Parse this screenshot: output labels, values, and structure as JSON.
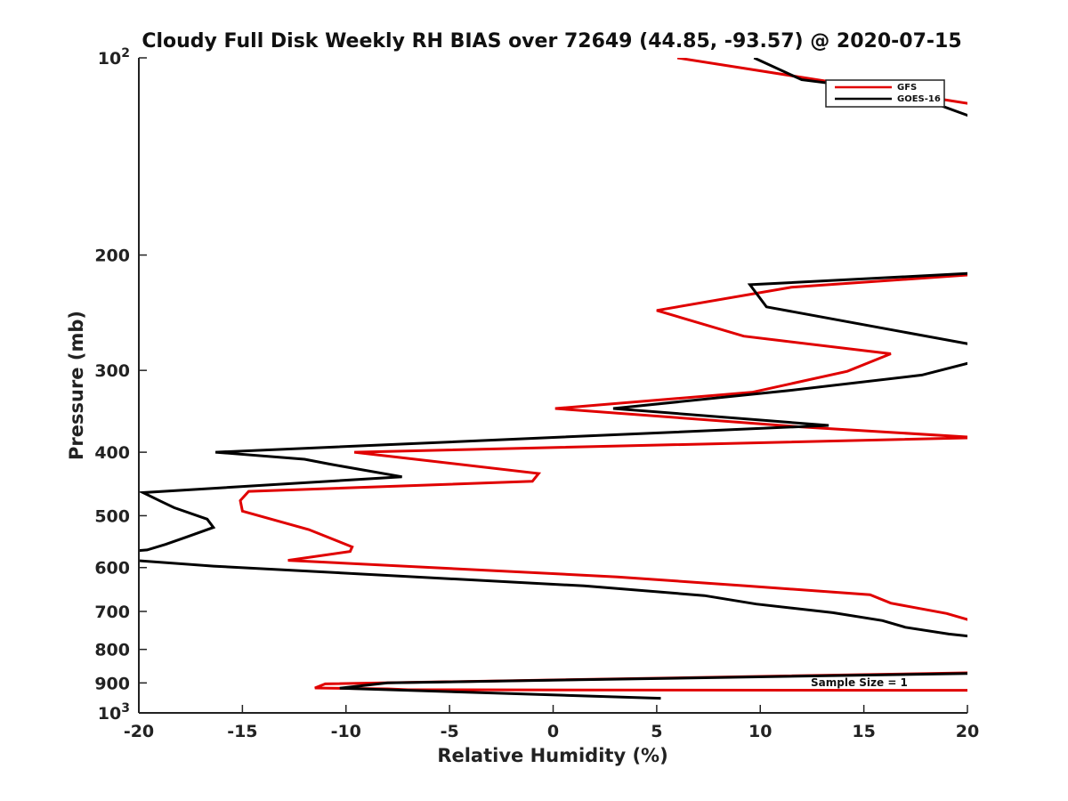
{
  "chart_data": {
    "type": "line",
    "title": "Cloudy Full Disk Weekly RH BIAS over 72649 (44.85, -93.57) @ 2020-07-15",
    "xlabel": "Relative Humidity (%)",
    "ylabel": "Pressure (mb)",
    "xlim": [
      -20,
      20
    ],
    "ylim": [
      100,
      1000
    ],
    "y_scale": "log",
    "y_reversed": true,
    "x_ticks": [
      "-20",
      "-15",
      "-10",
      "-5",
      "0",
      "5",
      "10",
      "15",
      "20"
    ],
    "y_ticks": [
      {
        "value": 100,
        "base": "10",
        "exp": "2"
      },
      {
        "value": 200,
        "label": "200"
      },
      {
        "value": 300,
        "label": "300"
      },
      {
        "value": 400,
        "label": "400"
      },
      {
        "value": 500,
        "label": "500"
      },
      {
        "value": 600,
        "label": "600"
      },
      {
        "value": 700,
        "label": "700"
      },
      {
        "value": 800,
        "label": "800"
      },
      {
        "value": 900,
        "label": "900"
      },
      {
        "value": 1000,
        "base": "10",
        "exp": "3"
      }
    ],
    "legend_position": "top-right",
    "annotation": "Sample Size = 1",
    "series": [
      {
        "name": "GFS",
        "color": "#e00000",
        "points": [
          [
            6.0,
            100
          ],
          [
            20.5,
            118
          ],
          [
            20.5,
            214
          ],
          [
            11.5,
            224
          ],
          [
            5.0,
            243
          ],
          [
            9.2,
            266
          ],
          [
            16.3,
            283
          ],
          [
            14.2,
            301
          ],
          [
            9.6,
            324
          ],
          [
            0.1,
            343
          ],
          [
            12.0,
            366
          ],
          [
            20.5,
            380
          ],
          [
            -9.6,
            400
          ],
          [
            -0.7,
            431
          ],
          [
            -1.0,
            443
          ],
          [
            -14.7,
            459
          ],
          [
            -15.1,
            474
          ],
          [
            -15.0,
            492
          ],
          [
            -11.8,
            525
          ],
          [
            -9.7,
            558
          ],
          [
            -9.8,
            567
          ],
          [
            -12.8,
            585
          ],
          [
            3.1,
            620
          ],
          [
            9.3,
            640
          ],
          [
            15.3,
            660
          ],
          [
            16.3,
            680
          ],
          [
            19.0,
            705
          ],
          [
            20.5,
            728
          ],
          [
            20.5,
            868
          ],
          [
            -11.0,
            903
          ],
          [
            -11.5,
            916
          ],
          [
            -8.0,
            919
          ],
          [
            -7.0,
            922
          ],
          [
            20.5,
            924
          ]
        ]
      },
      {
        "name": "GOES-16",
        "color": "#000000",
        "points": [
          [
            9.7,
            100
          ],
          [
            12.0,
            108
          ],
          [
            17.0,
            113
          ],
          [
            20.5,
            124
          ],
          [
            20.5,
            213
          ],
          [
            9.5,
            222
          ],
          [
            10.3,
            240
          ],
          [
            20.5,
            275
          ],
          [
            20.5,
            290
          ],
          [
            17.8,
            305
          ],
          [
            11.4,
            322
          ],
          [
            2.9,
            343
          ],
          [
            13.3,
            364
          ],
          [
            -16.3,
            400
          ],
          [
            -12.0,
            410
          ],
          [
            -10.8,
            417
          ],
          [
            -7.3,
            436
          ],
          [
            -19.8,
            461
          ],
          [
            -18.9,
            476
          ],
          [
            -18.3,
            486
          ],
          [
            -16.7,
            506
          ],
          [
            -16.4,
            521
          ],
          [
            -17.7,
            539
          ],
          [
            -18.7,
            553
          ],
          [
            -19.6,
            564
          ],
          [
            -20.5,
            567
          ],
          [
            -20.5,
            584
          ],
          [
            -16.4,
            597
          ],
          [
            1.5,
            640
          ],
          [
            7.3,
            662
          ],
          [
            9.8,
            682
          ],
          [
            13.5,
            703
          ],
          [
            15.9,
            723
          ],
          [
            17.0,
            740
          ],
          [
            19.1,
            758
          ],
          [
            20.5,
            766
          ],
          [
            20.5,
            870
          ],
          [
            -8.0,
            900
          ],
          [
            -10.3,
            917
          ],
          [
            5.2,
            950
          ]
        ]
      }
    ]
  }
}
